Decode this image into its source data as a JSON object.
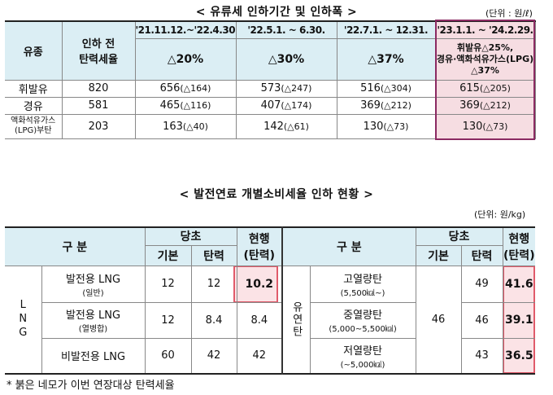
{
  "table1": {
    "title": "< 유류세 인하기간 및 인하폭 >",
    "unit": "(단위 : 원/ℓ)",
    "col_fuel": "유종",
    "col_before_1": "인하 전",
    "col_before_2": "탄력세율",
    "periods": [
      {
        "date": "'21.11.12.~'22.4.30.",
        "rate": "△20%"
      },
      {
        "date": "'22.5.1. ~ 6.30.",
        "rate": "△30%"
      },
      {
        "date": "'22.7.1. ~ 12.31.",
        "rate": "△37%"
      },
      {
        "date": "'23.1.1. ~ '24.2.29.",
        "note_1": "휘발유△25%,",
        "note_2": "경유·액화석유가스(LPG)",
        "note_3": "△37%"
      }
    ],
    "rows": [
      {
        "fuel": "휘발유",
        "before": "820",
        "cells": [
          [
            "656",
            "(△164)"
          ],
          [
            "573",
            "(△247)"
          ],
          [
            "516",
            "(△304)"
          ],
          [
            "615",
            "(△205)"
          ]
        ]
      },
      {
        "fuel": "경유",
        "before": "581",
        "cells": [
          [
            "465",
            "(△116)"
          ],
          [
            "407",
            "(△174)"
          ],
          [
            "369",
            "(△212)"
          ],
          [
            "369",
            "(△212)"
          ]
        ]
      },
      {
        "fuel_1": "액화석유가스",
        "fuel_2": "(LPG)부탄",
        "before": "203",
        "cells": [
          [
            "163",
            "(△40)"
          ],
          [
            "142",
            "(△61)"
          ],
          [
            "130",
            "(△73)"
          ],
          [
            "130",
            "(△73)"
          ]
        ]
      }
    ]
  },
  "table2": {
    "title": "< 발전연료 개별소비세율 인하 현황 >",
    "unit": "(단위: 원/kg)",
    "h_gubun": "구 분",
    "h_dangcho": "당초",
    "h_gibon": "기본",
    "h_tanryeok": "탄력",
    "h_current_1": "현행",
    "h_current_2": "(탄력)",
    "lng_label": "LNG",
    "lng_rows": [
      {
        "name": "발전용 LNG",
        "sub": "(일반)",
        "base": "12",
        "flex": "12",
        "current": "10.2"
      },
      {
        "name": "발전용 LNG",
        "sub": "(열병합)",
        "base": "12",
        "flex": "8.4",
        "current": "8.4"
      },
      {
        "name": "비발전용 LNG",
        "sub": "",
        "base": "60",
        "flex": "42",
        "current": "42"
      }
    ],
    "coal_label": "유연탄",
    "coal_base": "46",
    "coal_rows": [
      {
        "name": "고열량탄",
        "sub": "(5,500㎉~)",
        "flex": "49",
        "current": "41.6"
      },
      {
        "name": "중열량탄",
        "sub": "(5,000~5,500㎉)",
        "flex": "46",
        "current": "39.1"
      },
      {
        "name": "저열량탄",
        "sub": "(~5,000㎉)",
        "flex": "43",
        "current": "36.5"
      }
    ]
  },
  "footnote": "* 붉은 네모가 이번 연장대상 탄력세율",
  "colors": {
    "header_bg": "#dbeef4",
    "highlight_bg": "#f6dde2",
    "highlight_border": "#8b2a62",
    "red_box": "#e05a6a"
  }
}
